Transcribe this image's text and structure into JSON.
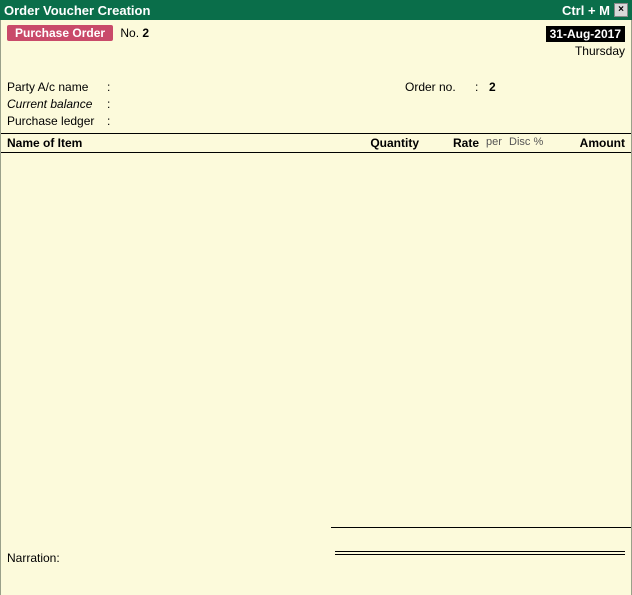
{
  "titlebar": {
    "title": "Order Voucher  Creation",
    "shortcut": "Ctrl + M",
    "close": "×"
  },
  "voucher": {
    "tag": "Purchase Order",
    "no_label": "No.",
    "no_value": "2",
    "date": "31-Aug-2017",
    "day": "Thursday"
  },
  "party": {
    "name_label": "Party A/c name",
    "balance_label": "Current balance",
    "ledger_label": "Purchase ledger",
    "order_label": "Order no.",
    "order_value": "2"
  },
  "columns": {
    "name": "Name of Item",
    "qty": "Quantity",
    "rate": "Rate",
    "per": "per",
    "disc": "Disc %",
    "amount": "Amount"
  },
  "narration": {
    "label": "Narration:"
  },
  "colors": {
    "titlebar_bg": "#0a6e4a",
    "content_bg": "#fcfadb",
    "tag_bg": "#c94a6a",
    "date_bg": "#000000"
  }
}
